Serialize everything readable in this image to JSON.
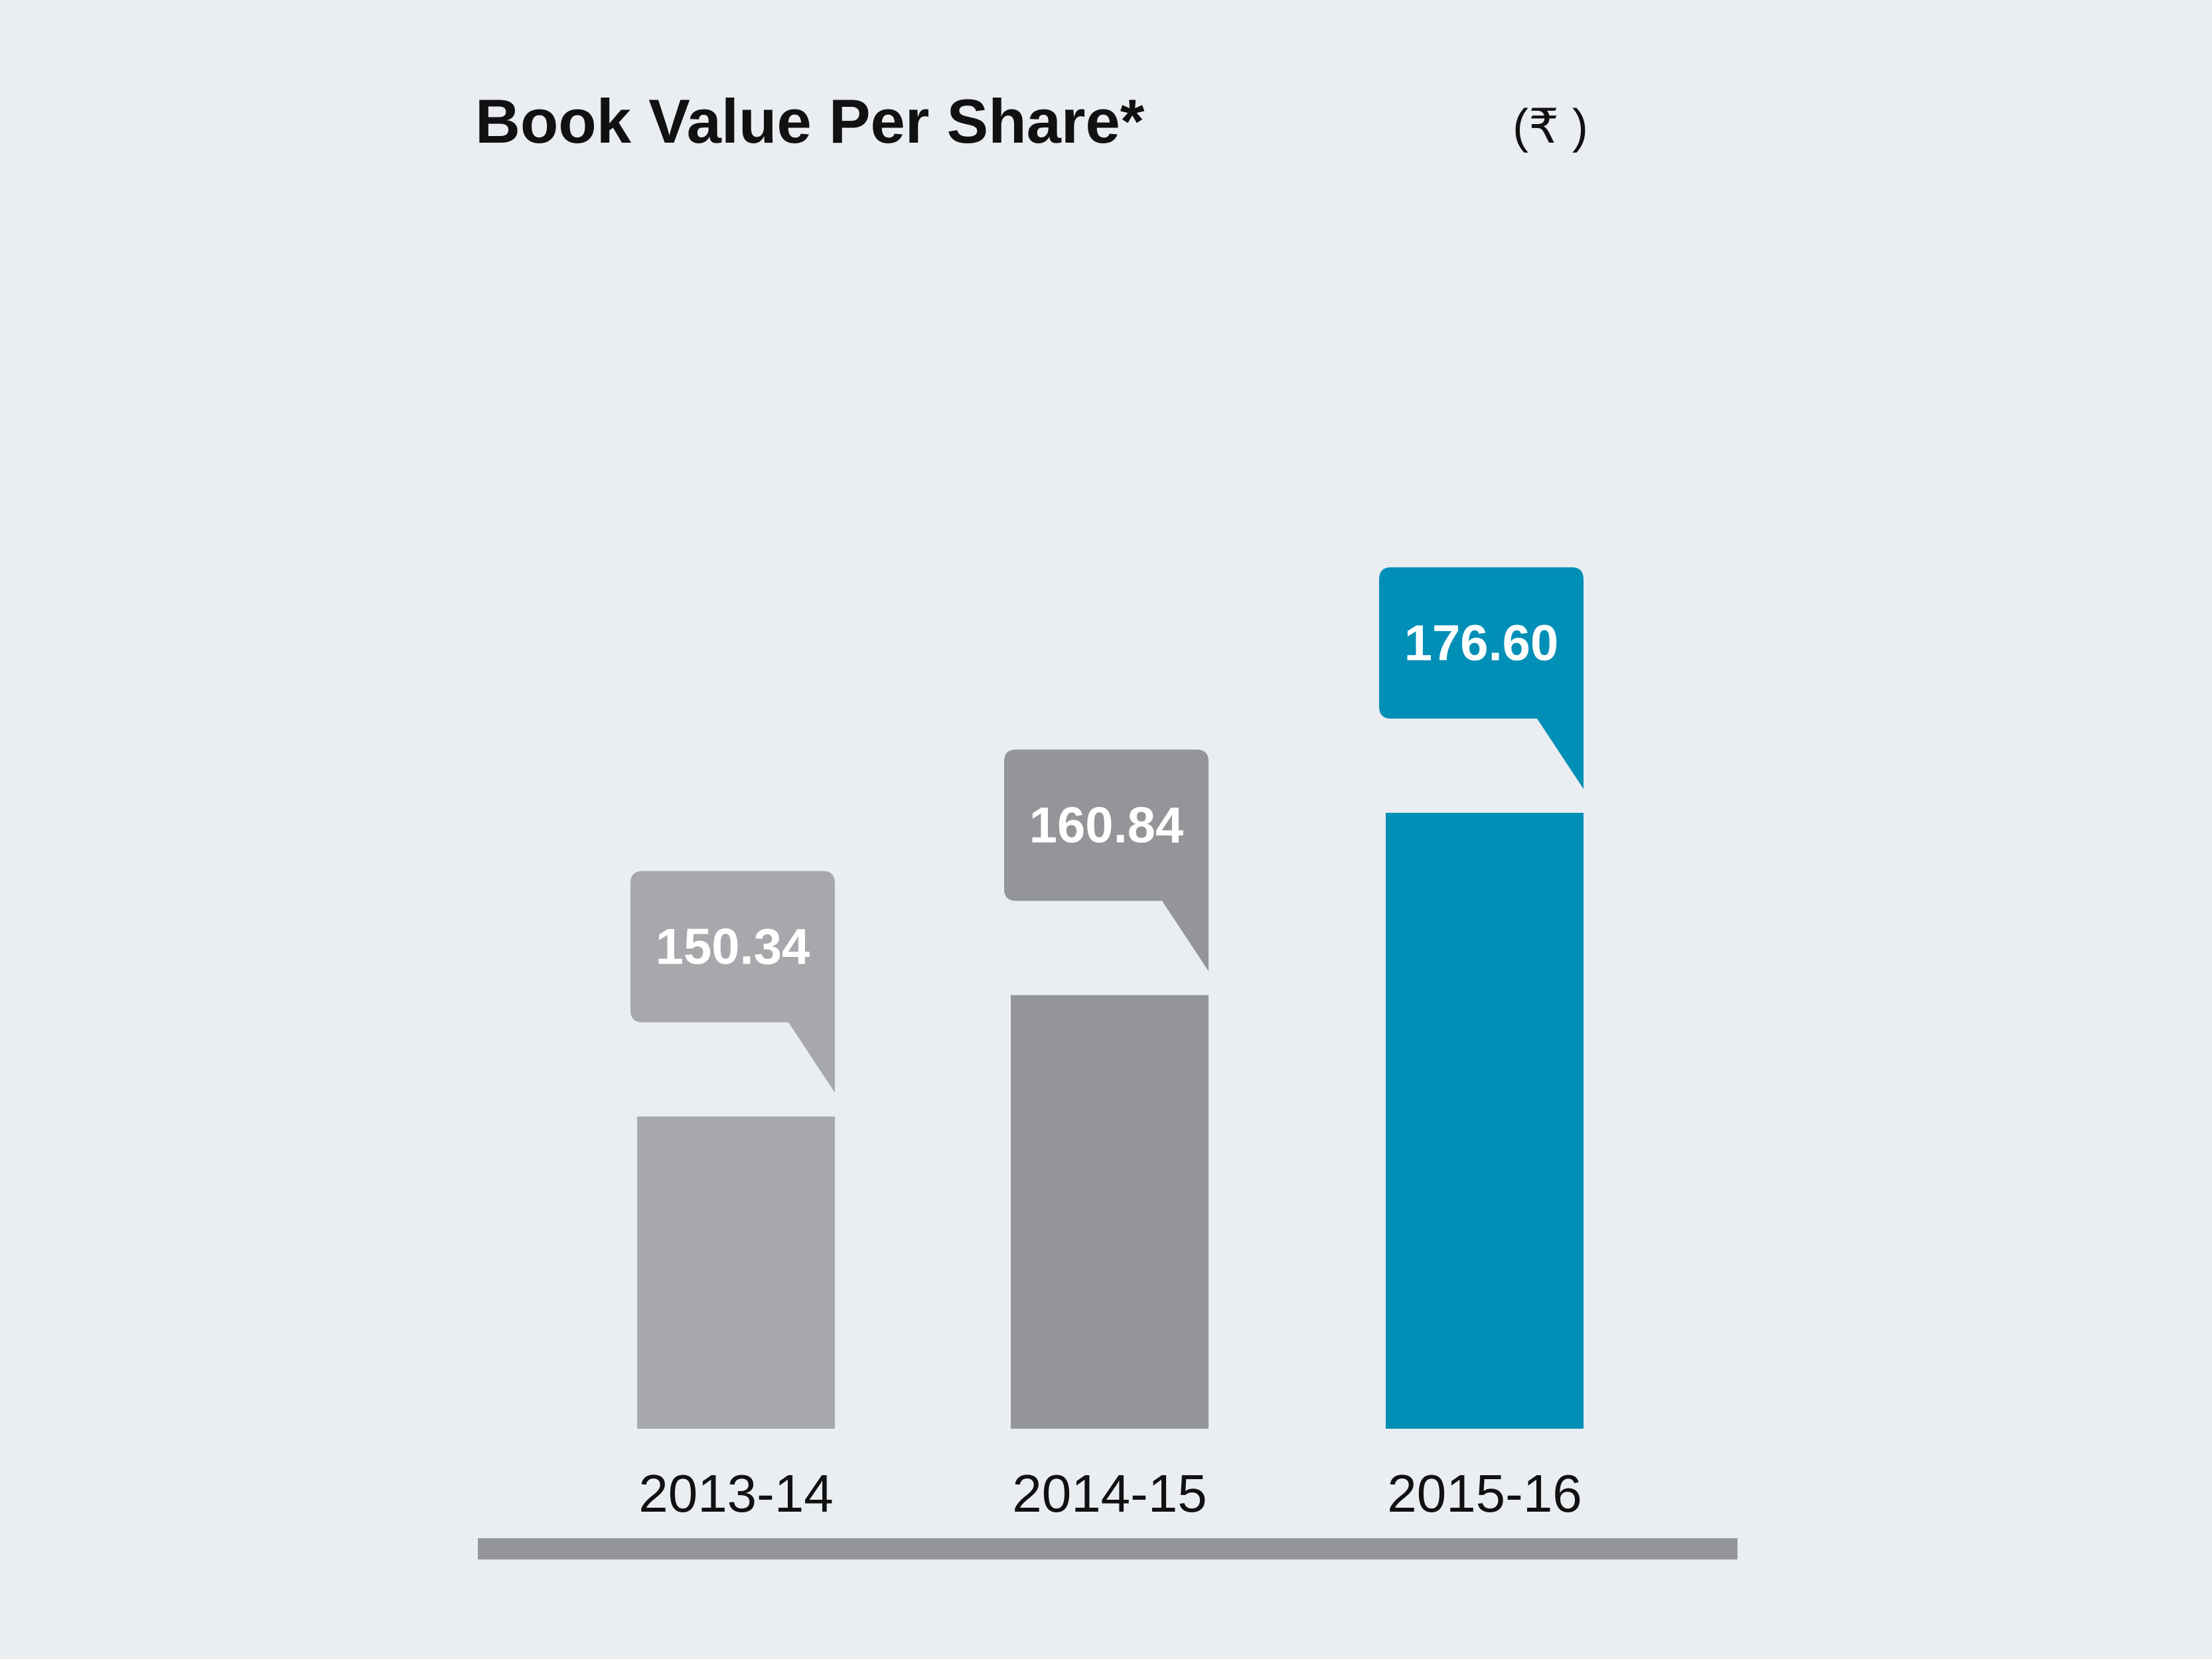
{
  "chart_data": {
    "type": "bar",
    "title": "Book Value Per Share*",
    "unit": "(₹ )",
    "categories": [
      "2013-14",
      "2014-15",
      "2015-16"
    ],
    "values": [
      150.34,
      160.84,
      176.6
    ],
    "value_labels": [
      "150.34",
      "160.84",
      "176.60"
    ],
    "colors": [
      "#A7A8AB",
      "#939598",
      "#008FB6"
    ],
    "baseline_color": "#939598",
    "background": "#EAEDF2",
    "xlabel": "",
    "ylabel": "",
    "grid": false,
    "legend": "none"
  }
}
